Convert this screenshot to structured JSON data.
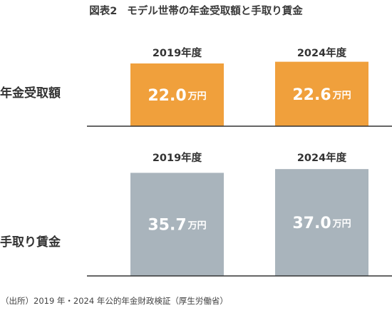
{
  "title": {
    "figure_number": "図表2",
    "text": "モデル世帯の年金受取額と手取り賃金"
  },
  "source_note": "（出所）2019 年・2024 年公的年金財政検証（厚生労働省）",
  "colors": {
    "pension_bar": "#f0a03c",
    "wage_bar": "#a9b4bc",
    "baseline": "#333333",
    "bar_label": "#ffffff",
    "text": "#333333"
  },
  "chart_data": [
    {
      "type": "bar",
      "row_label": "年金受取額",
      "categories": [
        "2019年度",
        "2024年度"
      ],
      "values": [
        22.0,
        22.6
      ],
      "value_labels": [
        "22.0",
        "22.6"
      ],
      "unit": "万円",
      "color": "#f0a03c"
    },
    {
      "type": "bar",
      "row_label": "手取り賃金",
      "categories": [
        "2019年度",
        "2024年度"
      ],
      "values": [
        35.7,
        37.0
      ],
      "value_labels": [
        "35.7",
        "37.0"
      ],
      "unit": "万円",
      "color": "#a9b4bc"
    }
  ]
}
